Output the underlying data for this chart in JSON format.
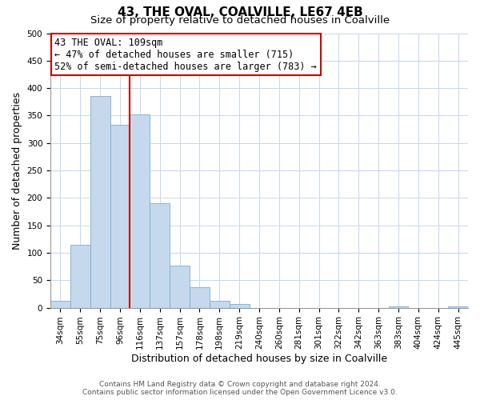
{
  "title": "43, THE OVAL, COALVILLE, LE67 4EB",
  "subtitle": "Size of property relative to detached houses in Coalville",
  "xlabel": "Distribution of detached houses by size in Coalville",
  "ylabel": "Number of detached properties",
  "bar_labels": [
    "34sqm",
    "55sqm",
    "75sqm",
    "96sqm",
    "116sqm",
    "137sqm",
    "157sqm",
    "178sqm",
    "198sqm",
    "219sqm",
    "240sqm",
    "260sqm",
    "281sqm",
    "301sqm",
    "322sqm",
    "342sqm",
    "363sqm",
    "383sqm",
    "404sqm",
    "424sqm",
    "445sqm"
  ],
  "bar_values": [
    13,
    115,
    385,
    333,
    352,
    190,
    76,
    38,
    13,
    7,
    0,
    0,
    0,
    0,
    0,
    0,
    0,
    2,
    0,
    0,
    2
  ],
  "bar_color": "#c6d9ec",
  "bar_edge_color": "#7aaad0",
  "vline_x": 4,
  "vline_color": "#cc0000",
  "annotation_line1": "43 THE OVAL: 109sqm",
  "annotation_line2": "← 47% of detached houses are smaller (715)",
  "annotation_line3": "52% of semi-detached houses are larger (783) →",
  "annotation_box_color": "#ffffff",
  "annotation_box_edge": "#cc0000",
  "ylim": [
    0,
    500
  ],
  "yticks": [
    0,
    50,
    100,
    150,
    200,
    250,
    300,
    350,
    400,
    450,
    500
  ],
  "grid_color": "#c8d8e8",
  "footer_line1": "Contains HM Land Registry data © Crown copyright and database right 2024.",
  "footer_line2": "Contains public sector information licensed under the Open Government Licence v3.0.",
  "title_fontsize": 11,
  "subtitle_fontsize": 9.5,
  "axis_label_fontsize": 9,
  "tick_fontsize": 7.5,
  "annotation_fontsize": 8.5,
  "footer_fontsize": 6.5
}
